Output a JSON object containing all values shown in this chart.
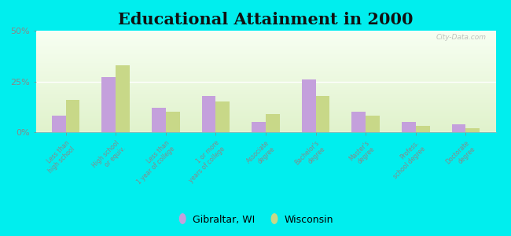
{
  "title": "Educational Attainment in 2000",
  "categories": [
    "Less than\nhigh school",
    "High school\nor equiv.",
    "Less than\n1 year of college",
    "1 or more\nyears of college",
    "Associate\ndegree",
    "Bachelor's\ndegree",
    "Master's\ndegree",
    "Profess.\nschool degree",
    "Doctorate\ndegree"
  ],
  "gibraltar_values": [
    8,
    27,
    12,
    18,
    5,
    26,
    10,
    5,
    4
  ],
  "wisconsin_values": [
    16,
    33,
    10,
    15,
    9,
    18,
    8,
    3,
    2
  ],
  "gibraltar_color": "#c4a0dc",
  "wisconsin_color": "#c8d888",
  "background_color": "#00eeee",
  "ylim": [
    0,
    50
  ],
  "yticks": [
    0,
    25,
    50
  ],
  "ytick_labels": [
    "0%",
    "25%",
    "50%"
  ],
  "legend_labels": [
    "Gibraltar, WI",
    "Wisconsin"
  ],
  "title_fontsize": 15,
  "watermark": "City-Data.com"
}
